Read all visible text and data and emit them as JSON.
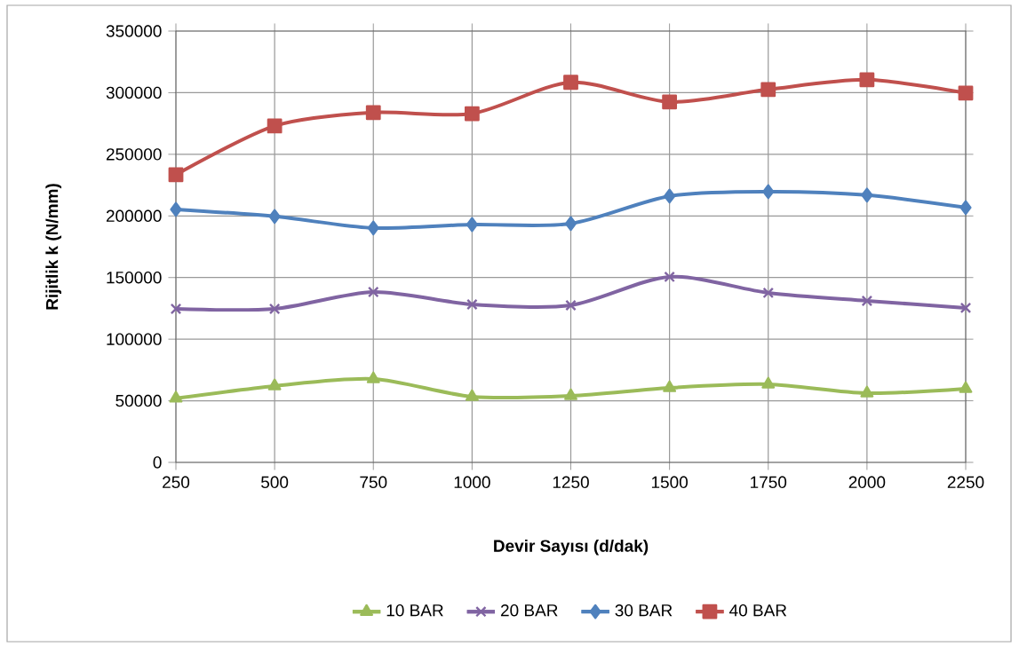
{
  "chart_data": {
    "type": "line",
    "xlabel": "Devir Sayısı (d/dak)",
    "ylabel": "Rijitlik k  (N/mm)",
    "x": [
      250,
      500,
      750,
      1000,
      1250,
      1500,
      1750,
      2000,
      2250
    ],
    "xlim": [
      250,
      2250
    ],
    "xticks": [
      250,
      500,
      750,
      1000,
      1250,
      1500,
      1750,
      2000,
      2250
    ],
    "ylim": [
      0,
      350000
    ],
    "yticks": [
      0,
      50000,
      100000,
      150000,
      200000,
      250000,
      300000,
      350000
    ],
    "grid": true,
    "legend": "bottom",
    "line_style": "solid",
    "series": [
      {
        "name": "10 BAR",
        "color": "#9bbb59",
        "marker": "triangle",
        "values": [
          52000,
          62000,
          67700,
          53300,
          54000,
          60500,
          63400,
          56200,
          59800
        ]
      },
      {
        "name": "20 BAR",
        "color": "#8064a2",
        "marker": "cross",
        "values": [
          124600,
          124600,
          138300,
          128200,
          127500,
          150600,
          137600,
          131100,
          125400
        ]
      },
      {
        "name": "30 BAR",
        "color": "#4f81bd",
        "marker": "diamond",
        "values": [
          205300,
          199600,
          190200,
          193000,
          193800,
          216100,
          219700,
          216900,
          206800
        ]
      },
      {
        "name": "40 BAR",
        "color": "#c0504d",
        "marker": "square",
        "values": [
          233400,
          273000,
          283900,
          283000,
          308400,
          292500,
          302600,
          310500,
          299700
        ]
      }
    ]
  }
}
